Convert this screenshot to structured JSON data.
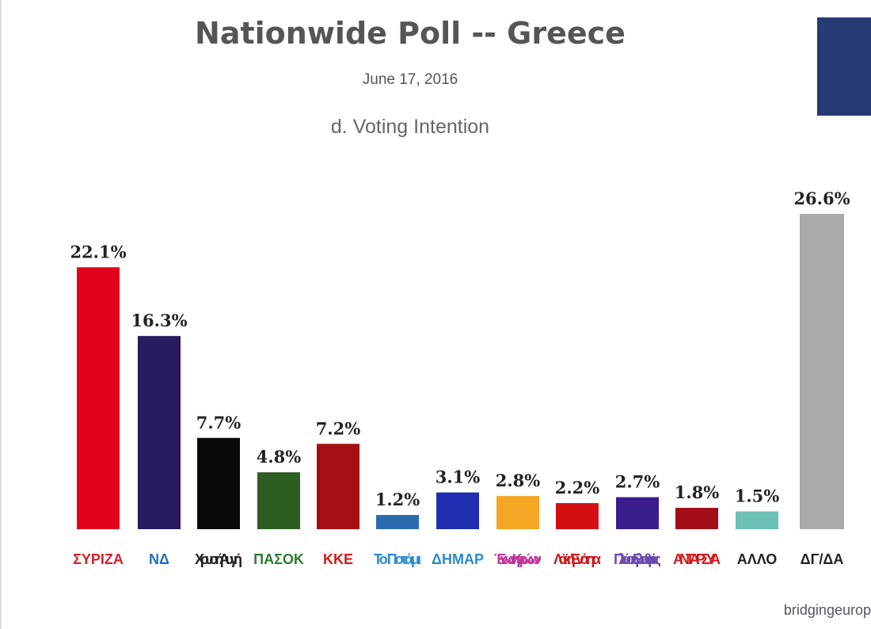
{
  "header": {
    "title": "Nationwide Poll -- Greece",
    "date": "June 17, 2016",
    "subtitle": "d. Voting Intention"
  },
  "source": "bridgingeurop",
  "chart_data": {
    "type": "bar",
    "title": "Nationwide Poll -- Greece",
    "subtitle": "d. Voting Intention",
    "categories": [
      "ΣΥΡΙΖΑ",
      "ΝΔ",
      "Χρυσή Αυγή",
      "ΠΑΣΟΚ",
      "ΚΚΕ",
      "Το Ποτάμι",
      "ΔΗΜΑΡ",
      "Ένωση Κεντρώων",
      "Λαϊκή Ενότητα",
      "Πλεύση Ελευθερίας",
      "ΑΝΤΑΡΣΥΑ",
      "ΑΛΛΟ",
      "ΔΓ/ΔΑ"
    ],
    "values": [
      22.1,
      16.3,
      7.7,
      4.8,
      7.2,
      1.2,
      3.1,
      2.8,
      2.2,
      2.7,
      1.8,
      1.5,
      26.6
    ],
    "value_labels": [
      "22.1%",
      "16.3%",
      "7.7%",
      "4.8%",
      "7.2%",
      "1.2%",
      "3.1%",
      "2.8%",
      "2.2%",
      "2.7%",
      "1.8%",
      "1.5%",
      "26.6%"
    ],
    "colors": [
      "#e3001b",
      "#2a1a5e",
      "#0a0a0a",
      "#2e5d22",
      "#a50e12",
      "#2b6cb0",
      "#1f2eb0",
      "#f5a623",
      "#d40f14",
      "#3a1d8c",
      "#a30d16",
      "#6dc1b6",
      "#aaaaaa"
    ],
    "logo_colors": [
      "#d4202a",
      "#1f6fc0",
      "#222222",
      "#2e7d32",
      "#d01a1a",
      "#2b8ad0",
      "#2b8ad0",
      "#c0379a",
      "#d01a1a",
      "#6a4ab0",
      "#d01a1a",
      "#222222",
      "#222222"
    ],
    "ylim": [
      0,
      27
    ],
    "xlabel": "",
    "ylabel": "",
    "grid": false
  }
}
